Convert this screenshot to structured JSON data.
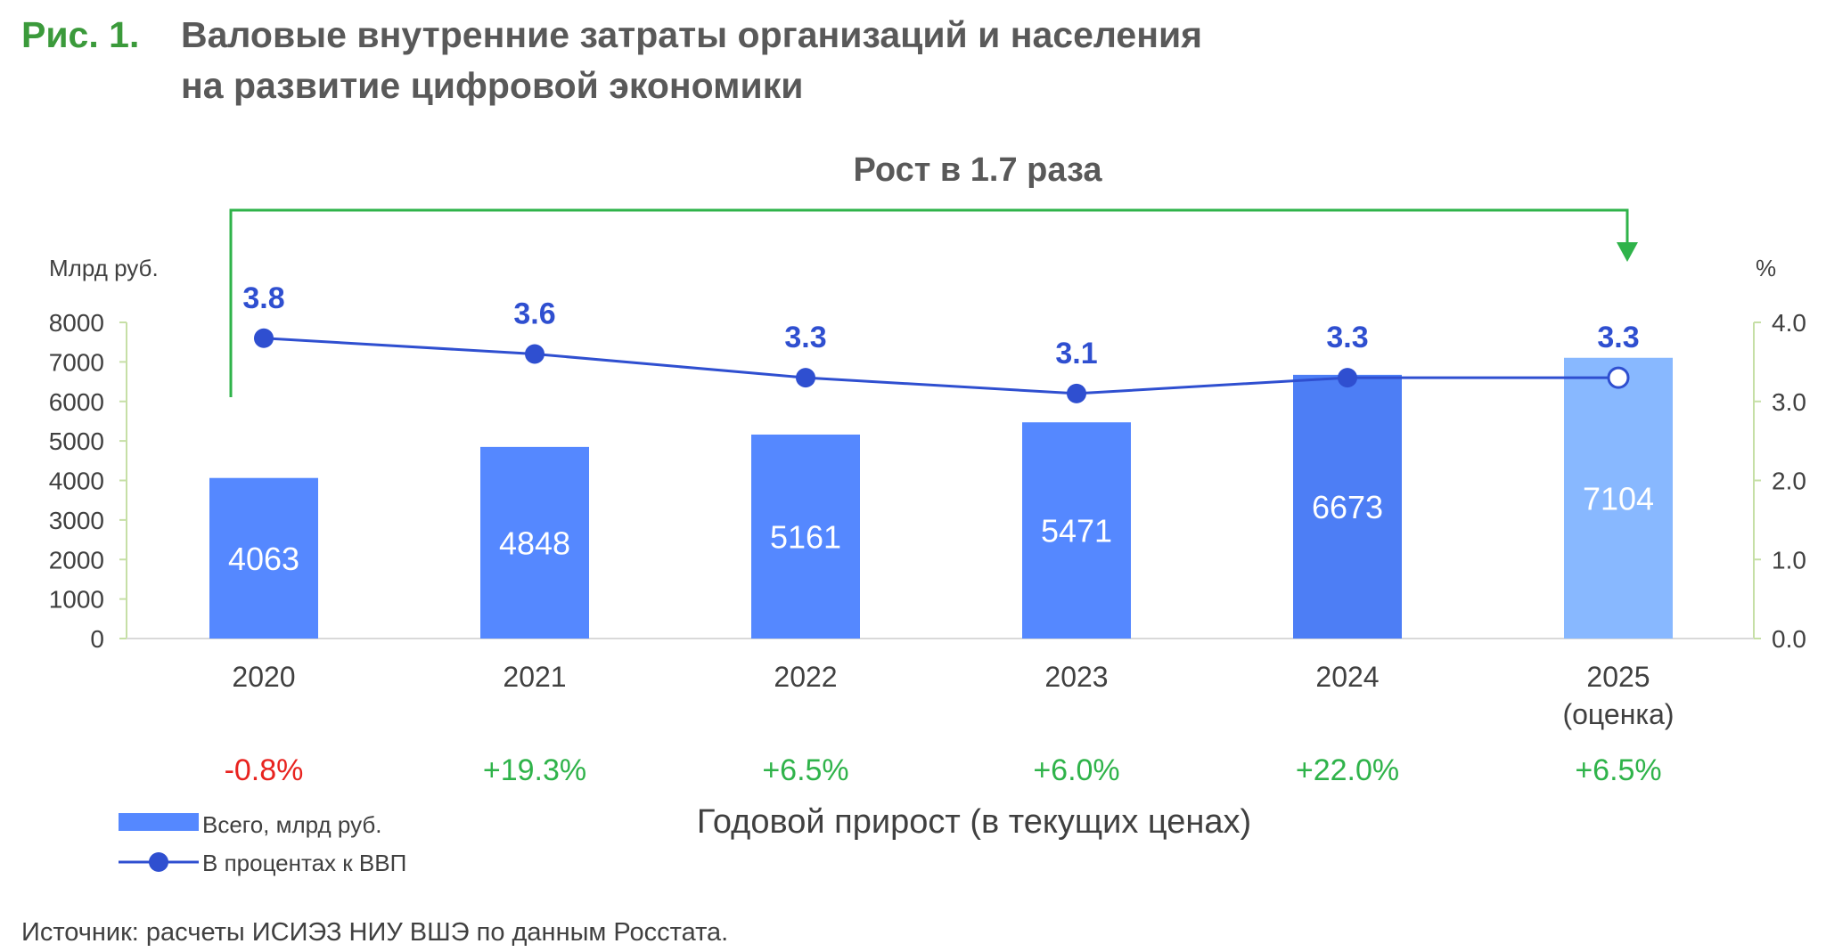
{
  "figure": {
    "label": "Рис. 1.",
    "title_line1": "Валовые внутренние затраты организаций и населения",
    "title_line2": "на развитие цифровой экономики"
  },
  "growth_annotation": "Рост в 1.7 раза",
  "chart_data": {
    "type": "bar",
    "categories": [
      "2020",
      "2021",
      "2022",
      "2023",
      "2024",
      "2025"
    ],
    "category_notes": [
      "",
      "",
      "",
      "",
      "",
      "(оценка)"
    ],
    "left_axis": {
      "unit": "Млрд руб.",
      "ylim": [
        0,
        8000
      ],
      "ticks": [
        0,
        1000,
        2000,
        3000,
        4000,
        5000,
        6000,
        7000,
        8000
      ]
    },
    "right_axis": {
      "unit": "%",
      "ylim": [
        0,
        4
      ],
      "ticks": [
        "0.0",
        "1.0",
        "2.0",
        "3.0",
        "4.0"
      ]
    },
    "series": [
      {
        "name": "Всего, млрд руб.",
        "kind": "bar",
        "values": [
          4063,
          4848,
          5161,
          5471,
          6673,
          7104
        ],
        "colors": [
          "#5588ff",
          "#5588ff",
          "#5588ff",
          "#5588ff",
          "#4d7ef5",
          "#88b8ff"
        ]
      },
      {
        "name": "В процентах к ВВП",
        "kind": "line",
        "axis": "right",
        "values": [
          3.8,
          3.6,
          3.3,
          3.1,
          3.3,
          3.3
        ],
        "labels": [
          "3.8",
          "3.6",
          "3.3",
          "3.1",
          "3.3",
          "3.3"
        ],
        "color": "#2f4fd0",
        "estimate_last": true
      }
    ],
    "annual_growth": {
      "caption": "Годовой прирост (в текущих ценах)",
      "values": [
        "-0.8%",
        "+19.3%",
        "+6.5%",
        "+6.0%",
        "+22.0%",
        "+6.5%"
      ],
      "negative_color": "#e8231f",
      "positive_color": "#2fb34a"
    },
    "legend": {
      "placement": "bottom-left"
    }
  },
  "source": "Источник: расчеты ИСИЭЗ НИУ ВШЭ по данным Росстата."
}
